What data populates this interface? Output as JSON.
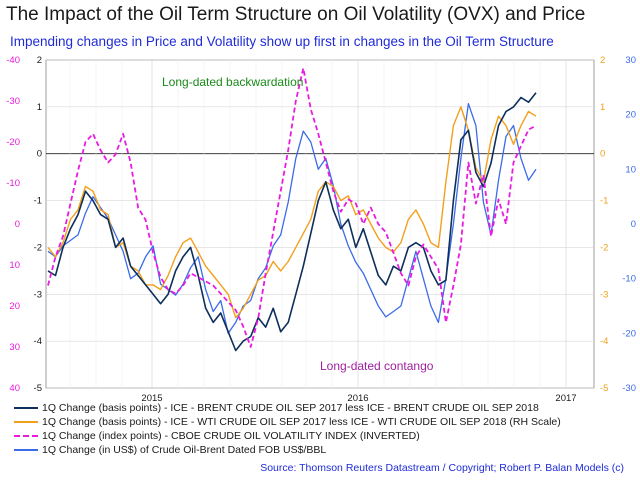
{
  "title": "The Impact of the Oil Term Structure on Oil Volatility (OVX) and Price",
  "subtitle": "Impending changes in Price and Volatility show up first in changes in the Oil Term Structure",
  "source": "Source: Thomson Reuters Datastream / Copyright; Robert P. Balan Models (c)",
  "colors": {
    "brent_spread": "#0d2f5c",
    "wti_spread": "#f2a01c",
    "ovx": "#e81be0",
    "brent_dated": "#3b6be8",
    "pink_axis": "#e81be0",
    "orange_axis": "#f2a01c",
    "blue_axis": "#3b6be8",
    "annotation_green": "#1a8a1a",
    "annotation_purple": "#a020a0"
  },
  "chart_data": {
    "type": "line",
    "x_tick_labels": [
      "2015",
      "2016",
      "2017"
    ],
    "axes": {
      "left_pink": {
        "range": [
          40,
          -40
        ],
        "inverted": true,
        "ticks": [
          "-40",
          "-30",
          "-20",
          "-10",
          "0",
          "10",
          "20",
          "30",
          "40"
        ]
      },
      "left_black": {
        "range": [
          -5,
          2
        ],
        "ticks": [
          "2",
          "1",
          "0",
          "-1",
          "-2",
          "-3",
          "-4",
          "-5"
        ]
      },
      "right_orange": {
        "range": [
          -5,
          2
        ],
        "ticks": [
          "2",
          "1",
          "0",
          "-1",
          "-2",
          "-3",
          "-4",
          "-5"
        ]
      },
      "right_blue": {
        "range": [
          -30,
          30
        ],
        "ticks": [
          "30",
          "20",
          "10",
          "0",
          "-10",
          "-20",
          "-30"
        ]
      }
    },
    "grid": true,
    "zero_line": true,
    "annotations": [
      "Long-dated backwardation",
      "Long-dated contango"
    ],
    "series": [
      {
        "name": "1Q Change (basis points) - ICE - BRENT CRUDE OIL SEP 2017 less ICE - BRENT CRUDE OIL SEP 2018",
        "axis": "left_black",
        "style": "solid",
        "width": 1.6,
        "values": [
          -2.5,
          -2.6,
          -2.0,
          -1.6,
          -1.3,
          -0.8,
          -1.0,
          -1.3,
          -1.4,
          -2.0,
          -1.8,
          -2.4,
          -2.6,
          -2.8,
          -3.0,
          -3.2,
          -3.0,
          -2.5,
          -2.2,
          -2.0,
          -2.6,
          -3.3,
          -3.6,
          -3.4,
          -3.8,
          -4.2,
          -4.0,
          -3.9,
          -3.5,
          -3.7,
          -3.3,
          -3.8,
          -3.6,
          -3.0,
          -2.4,
          -1.7,
          -1.0,
          -0.6,
          -1.2,
          -1.6,
          -1.4,
          -2.0,
          -1.6,
          -2.1,
          -2.6,
          -2.8,
          -2.4,
          -2.5,
          -2.0,
          -1.9,
          -2.0,
          -2.5,
          -2.8,
          -2.7,
          -1.0,
          0.3,
          0.5,
          -0.4,
          -0.7,
          -0.2,
          0.6,
          0.9,
          1.0,
          1.2,
          1.1,
          1.3
        ]
      },
      {
        "name": "1Q Change (basis points) - ICE - WTI CRUDE OIL SEP 2017 less ICE - WTI CRUDE OIL SEP 2018 (RH Scale)",
        "axis": "right_orange",
        "style": "solid",
        "width": 1.4,
        "values": [
          -2.0,
          -2.2,
          -1.9,
          -1.4,
          -1.2,
          -0.7,
          -0.8,
          -1.2,
          -1.3,
          -2.0,
          -1.9,
          -2.4,
          -2.5,
          -2.8,
          -2.8,
          -2.9,
          -2.6,
          -2.2,
          -1.9,
          -1.8,
          -2.1,
          -2.4,
          -2.6,
          -2.8,
          -3.0,
          -3.5,
          -3.3,
          -3.0,
          -2.7,
          -2.6,
          -2.3,
          -2.5,
          -2.3,
          -2.0,
          -1.7,
          -1.4,
          -0.8,
          -0.6,
          -0.7,
          -1.0,
          -0.9,
          -1.3,
          -1.2,
          -1.5,
          -1.8,
          -2.0,
          -2.1,
          -1.9,
          -1.4,
          -1.2,
          -1.5,
          -1.9,
          -2.0,
          -0.6,
          0.6,
          1.0,
          0.5,
          -0.3,
          -0.6,
          0.3,
          0.8,
          0.6,
          0.2,
          0.6,
          0.9,
          0.8
        ]
      },
      {
        "name": "1Q Change (index points) - CBOE CRUDE OIL VOLATILITY INDEX (INVERTED)",
        "axis": "left_pink",
        "style": "dashed",
        "width": 1.8,
        "values": [
          15,
          8,
          3,
          -5,
          -13,
          -20,
          -22,
          -18,
          -15,
          -17,
          -22,
          -15,
          -4,
          -1,
          7,
          13,
          16,
          17,
          15,
          12,
          13,
          14,
          15,
          17,
          19,
          21,
          25,
          30,
          23,
          12,
          2,
          -8,
          -18,
          -30,
          -38,
          -28,
          -22,
          -15,
          -8,
          -3,
          -6,
          -5,
          0,
          -4,
          0,
          2,
          7,
          12,
          15,
          8,
          5,
          8,
          11,
          24,
          15,
          5,
          -15,
          -5,
          -12,
          3,
          -6,
          0,
          -15,
          -19,
          -23,
          -24
        ]
      },
      {
        "name": "1Q Change (in US$) of Crude Oil-Brent Dated FOB US$/BBL",
        "axis": "right_blue",
        "style": "solid",
        "width": 1.3,
        "values": [
          -5,
          -6,
          -4,
          -3,
          -2,
          2,
          5,
          3,
          1,
          -2,
          -5,
          -10,
          -9,
          -6,
          -4,
          -11,
          -12,
          -13,
          -11,
          -8,
          -6,
          -12,
          -16,
          -14,
          -20,
          -18,
          -15,
          -14,
          -10,
          -8,
          -4,
          -2,
          4,
          12,
          17,
          15,
          10,
          12,
          7,
          0,
          -4,
          -7,
          -9,
          -12,
          -15,
          -17,
          -16,
          -15,
          -10,
          -5,
          -10,
          -15,
          -18,
          -10,
          0,
          12,
          22,
          18,
          4,
          -2,
          8,
          16,
          18,
          12,
          8,
          10
        ]
      }
    ]
  }
}
